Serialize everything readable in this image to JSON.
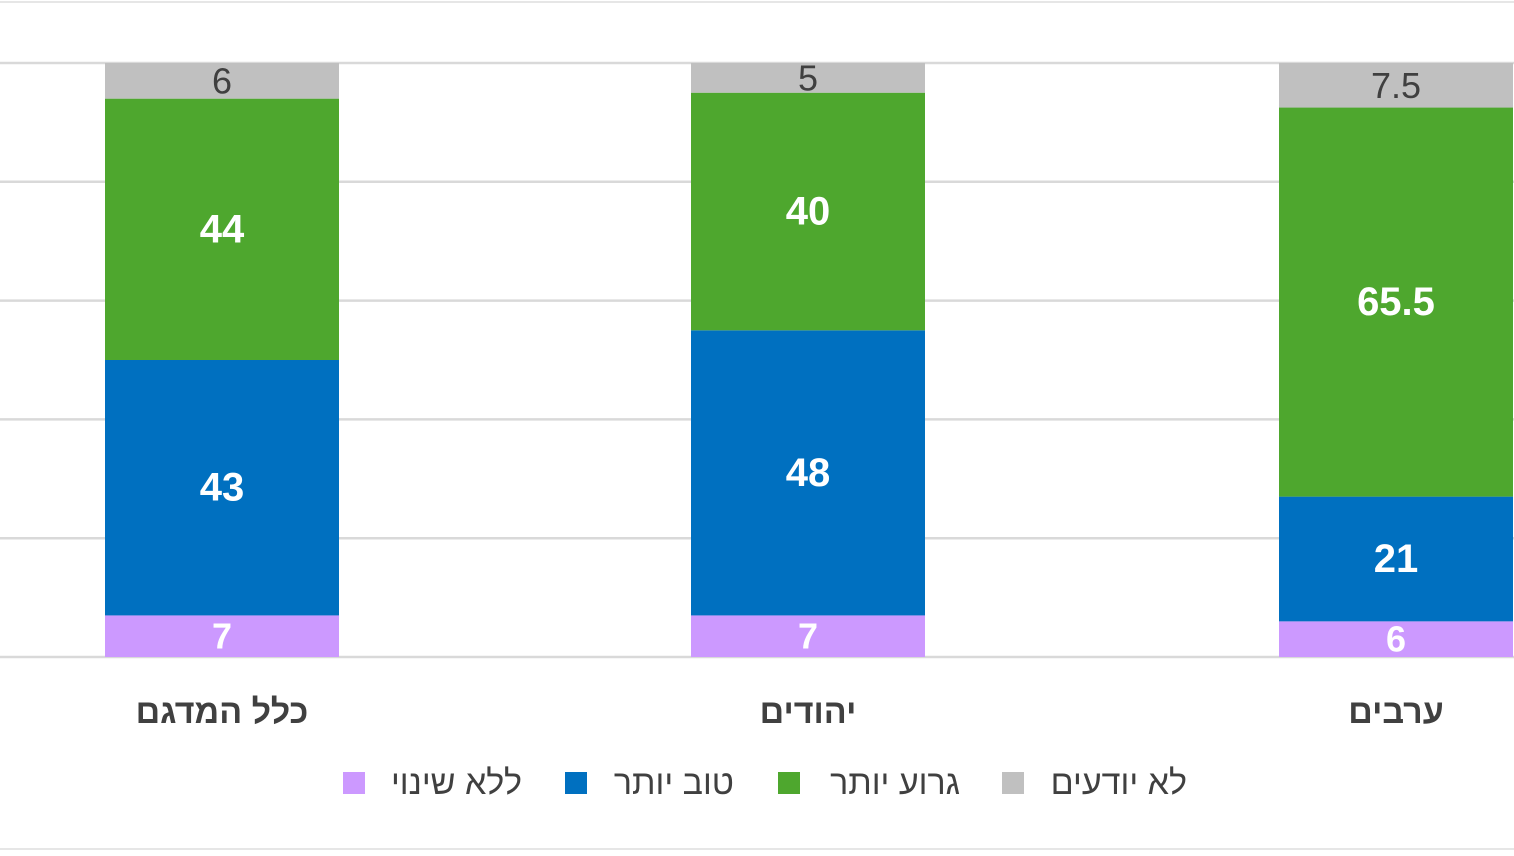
{
  "chart_data": {
    "type": "bar",
    "stacked": true,
    "normalized_percent": true,
    "categories": [
      "כלל המדגם",
      "יהודים",
      "ערבים"
    ],
    "series": [
      {
        "name": "ללא שינוי",
        "color": "#cc99ff",
        "values": [
          7,
          7,
          6
        ]
      },
      {
        "name": "טוב יותר",
        "color": "#0070c0",
        "values": [
          43,
          48,
          21
        ]
      },
      {
        "name": "גרוע יותר",
        "color": "#4ea72e",
        "values": [
          44,
          40,
          65.5
        ]
      },
      {
        "name": "לא יודעים",
        "color": "#c0c0c0",
        "values": [
          6,
          5,
          7.5
        ]
      }
    ],
    "ylim": [
      0,
      100
    ],
    "grid": true,
    "legend_position": "bottom",
    "legend_order": [
      "לא יודעים",
      "גרוע יותר",
      "טוב יותר",
      "ללא שינוי"
    ],
    "label_colors": {
      "ללא שינוי": "#ffffff",
      "טוב יותר": "#ffffff",
      "גרוע יותר": "#ffffff",
      "לא יודעים": "#404040"
    }
  }
}
